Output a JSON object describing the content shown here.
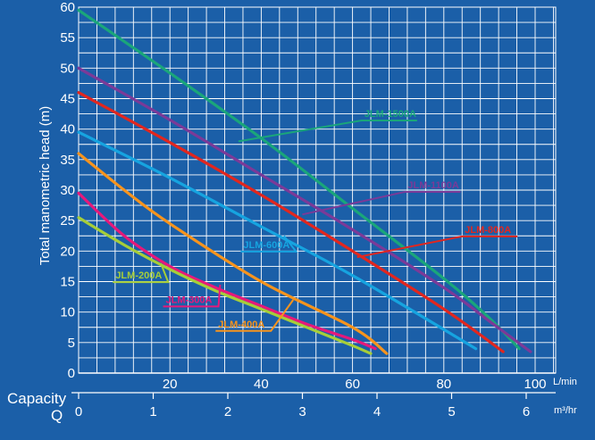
{
  "chart_data": {
    "type": "line",
    "ylabel": "Total manometric head (m)",
    "xlabel": "Capacity",
    "xlabel2": "Q",
    "x_unit": "L/min",
    "x2_unit": "m³/hr",
    "xlim": [
      0,
      106
    ],
    "ylim": [
      0,
      60
    ],
    "y_ticks": [
      0,
      5,
      10,
      15,
      20,
      25,
      30,
      35,
      40,
      45,
      50,
      55,
      60
    ],
    "x_ticks": [
      20,
      40,
      60,
      80,
      100
    ],
    "x2_ticks": [
      0,
      1,
      2,
      3,
      4,
      5,
      6
    ],
    "grid": true,
    "series": [
      {
        "name": "JLM-1500A",
        "color": "#1aa67a",
        "x": [
          0,
          20,
          40,
          60,
          80,
          90,
          96.5
        ],
        "y": [
          59.5,
          49.2,
          38.5,
          27,
          15.5,
          9,
          4
        ],
        "label_at": [
          62,
          42
        ],
        "leader_to": [
          35,
          38
        ]
      },
      {
        "name": "JLM-1100A",
        "color": "#7b3a98",
        "x": [
          0,
          20,
          40,
          60,
          80,
          90,
          99
        ],
        "y": [
          50,
          41.5,
          32.5,
          23.5,
          14,
          8.5,
          3.5
        ],
        "label_at": [
          71.5,
          30.3
        ],
        "leader_to": [
          49,
          26
        ]
      },
      {
        "name": "JLM-800A",
        "color": "#e2261e",
        "x": [
          0,
          20,
          40,
          60,
          80,
          93
        ],
        "y": [
          46,
          37.8,
          29.2,
          20,
          10.5,
          3.5
        ],
        "label_at": [
          84,
          23
        ],
        "leader_to": [
          61,
          19
        ]
      },
      {
        "name": "JLM-600A",
        "color": "#16a4e0",
        "x": [
          0,
          20,
          40,
          60,
          87
        ],
        "y": [
          39.5,
          32,
          24,
          16,
          4
        ],
        "label_at": [
          35.5,
          20.5
        ],
        "leader_to": [
          45,
          22.5
        ]
      },
      {
        "name": "JLM-400A",
        "color": "#f7941d",
        "x": [
          0,
          10,
          20,
          40,
          60,
          67.5
        ],
        "y": [
          36,
          30,
          24.5,
          15,
          7.5,
          3.2
        ],
        "label_at": [
          30,
          7.5
        ],
        "leader_to": [
          47,
          12
        ]
      },
      {
        "name": "JLM-300A",
        "color": "#e6197a",
        "x": [
          0,
          10,
          20,
          30,
          40,
          50,
          60,
          65
        ],
        "y": [
          29.5,
          22.5,
          17.5,
          14,
          11,
          8,
          5.5,
          4
        ],
        "label_at": [
          18.5,
          11.5
        ],
        "leader_to": [
          31,
          14.5
        ]
      },
      {
        "name": "JLM-200A",
        "color": "#a6ce39",
        "x": [
          0,
          10,
          20,
          30,
          40,
          50,
          60,
          64
        ],
        "y": [
          25.5,
          21,
          17,
          13.5,
          10.5,
          7.5,
          4.5,
          3.2
        ],
        "label_at": [
          7.5,
          15.5
        ],
        "leader_to": [
          18,
          18
        ]
      }
    ]
  }
}
